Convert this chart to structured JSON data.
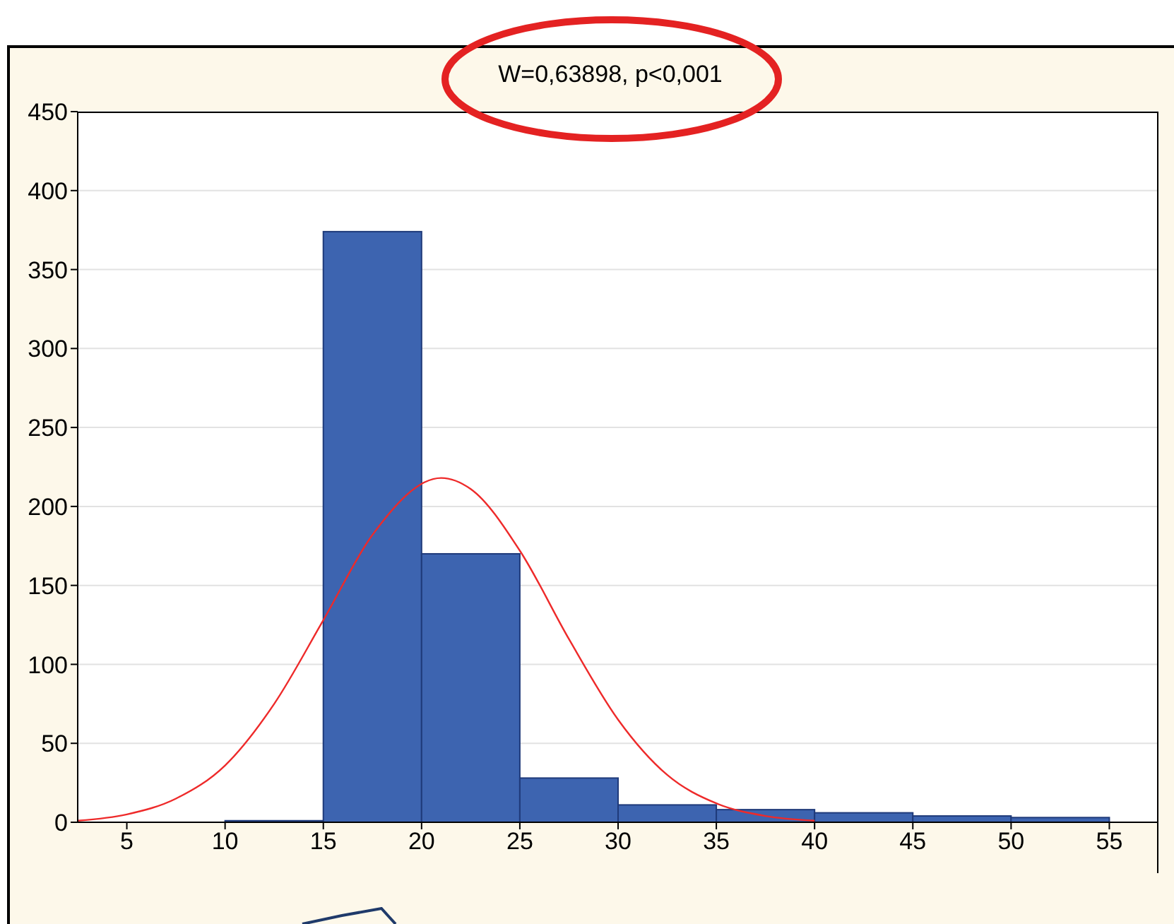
{
  "chart_data": {
    "type": "histogram",
    "title": "W=0,63898, p<0,001",
    "bins": [
      10,
      15,
      20,
      25,
      30,
      35,
      40,
      45,
      50,
      55
    ],
    "values": [
      1,
      374,
      170,
      28,
      11,
      8,
      6,
      4,
      3
    ],
    "color": "#3d64b0",
    "series": [
      {
        "type": "line",
        "color": "#ee2a2a",
        "x": [
          2.5,
          5,
          7.5,
          10,
          12.5,
          15,
          17.5,
          21,
          22.5,
          25,
          27.5,
          30,
          32.5,
          35,
          37.5,
          40
        ],
        "values": [
          1,
          5,
          15,
          36,
          75,
          128,
          182,
          218,
          211,
          172,
          116,
          65,
          30,
          12,
          4,
          1
        ]
      }
    ],
    "xlim": [
      2.5,
      57.5
    ],
    "xticks": [
      5,
      10,
      15,
      20,
      25,
      30,
      35,
      40,
      45,
      50,
      55
    ],
    "ylim": [
      0,
      450
    ],
    "yticks": [
      0,
      50,
      100,
      150,
      200,
      250,
      300,
      350,
      400,
      450
    ],
    "grid": "y"
  }
}
